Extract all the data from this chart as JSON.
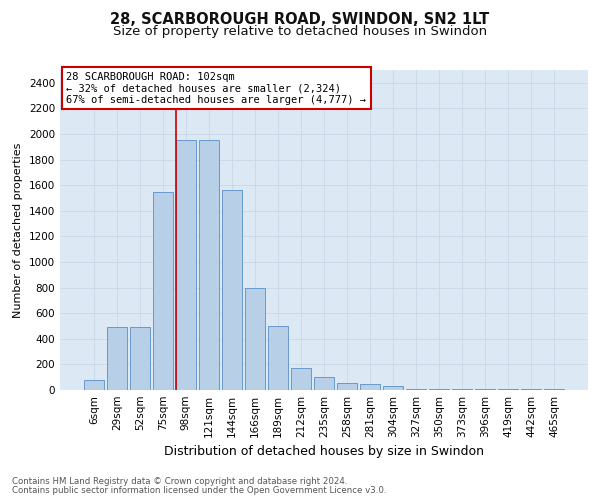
{
  "title": "28, SCARBOROUGH ROAD, SWINDON, SN2 1LT",
  "subtitle": "Size of property relative to detached houses in Swindon",
  "xlabel": "Distribution of detached houses by size in Swindon",
  "ylabel": "Number of detached properties",
  "categories": [
    "6sqm",
    "29sqm",
    "52sqm",
    "75sqm",
    "98sqm",
    "121sqm",
    "144sqm",
    "166sqm",
    "189sqm",
    "212sqm",
    "235sqm",
    "258sqm",
    "281sqm",
    "304sqm",
    "327sqm",
    "350sqm",
    "373sqm",
    "396sqm",
    "419sqm",
    "442sqm",
    "465sqm"
  ],
  "values": [
    75,
    490,
    490,
    1550,
    1950,
    1950,
    1560,
    800,
    500,
    175,
    105,
    55,
    50,
    35,
    10,
    10,
    5,
    5,
    5,
    5,
    5
  ],
  "bar_color": "#b8cfe8",
  "bar_edge_color": "#6699cc",
  "red_line_index": 4,
  "annotation_text": "28 SCARBOROUGH ROAD: 102sqm\n← 32% of detached houses are smaller (2,324)\n67% of semi-detached houses are larger (4,777) →",
  "annotation_box_facecolor": "#ffffff",
  "annotation_box_edgecolor": "#cc0000",
  "ylim": [
    0,
    2500
  ],
  "yticks": [
    0,
    200,
    400,
    600,
    800,
    1000,
    1200,
    1400,
    1600,
    1800,
    2000,
    2200,
    2400
  ],
  "grid_color": "#c8d8ea",
  "bg_color": "#dce8f4",
  "footer_line1": "Contains HM Land Registry data © Crown copyright and database right 2024.",
  "footer_line2": "Contains public sector information licensed under the Open Government Licence v3.0.",
  "title_fontsize": 10.5,
  "subtitle_fontsize": 9.5,
  "ylabel_fontsize": 8,
  "xlabel_fontsize": 9,
  "tick_fontsize": 7.5,
  "annotation_fontsize": 7.5,
  "footer_fontsize": 6.2
}
